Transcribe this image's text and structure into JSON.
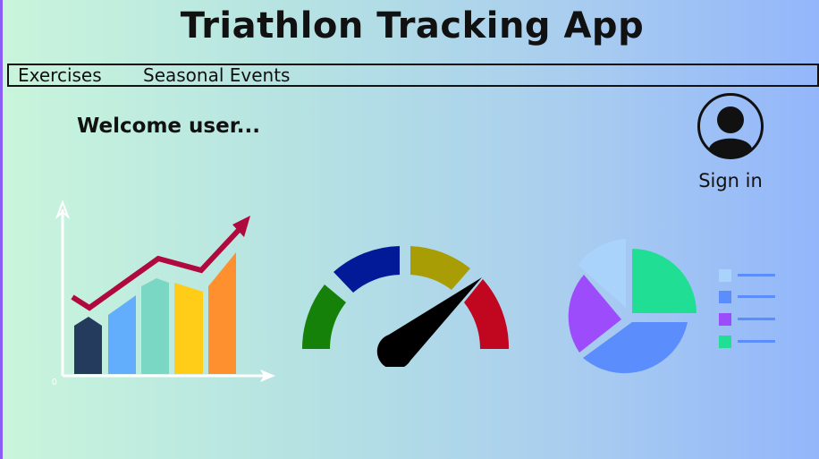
{
  "app": {
    "title": "Triathlon Tracking App"
  },
  "nav": {
    "items": [
      {
        "label": "Exercises"
      },
      {
        "label": "Seasonal Events"
      }
    ]
  },
  "main": {
    "welcome": "Welcome user...",
    "signin": {
      "label": "Sign in",
      "icon": "user-avatar-icon"
    }
  },
  "illustrations": {
    "bar_chart": {
      "icon": "growth-bar-chart-icon",
      "origin_label": "0",
      "bar_colors": [
        "#243b5e",
        "#63aefc",
        "#7ad7c3",
        "#ffcd18",
        "#ff9030"
      ],
      "trend_color": "#b0093e"
    },
    "gauge": {
      "icon": "speedometer-gauge-icon",
      "segment_colors": [
        "#168109",
        "#031a98",
        "#a89d05",
        "#c0071f"
      ],
      "needle_color": "#000000"
    },
    "pie_chart": {
      "icon": "pie-chart-legend-icon",
      "slice_colors": [
        "#a9d3fb",
        "#20de94",
        "#5b8efc",
        "#9d4cfc"
      ],
      "legend_colors": [
        "#a9d3fb",
        "#5b8efc",
        "#9d4cfc",
        "#20de94"
      ],
      "legend_line_color": "#5b8efc"
    }
  }
}
